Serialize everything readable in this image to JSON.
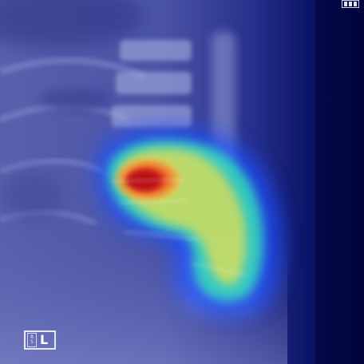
{
  "image": {
    "description_hidden": true,
    "colors": {
      "background": "#02043a",
      "bone": "#9aa0d6",
      "heat_low": "#1e50ff",
      "heat_mid": "#38e6b8",
      "heat_high": "#ffd24a",
      "heat_peak": "#d81e1e"
    }
  },
  "marker": {
    "small_text_top": "R",
    "small_text_mid": "S",
    "letter": "L"
  }
}
